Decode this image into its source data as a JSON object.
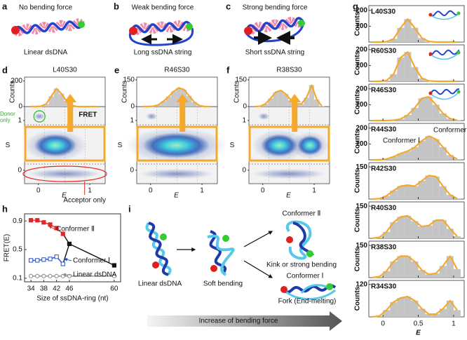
{
  "panel_a": {
    "letter": "a",
    "title": "No bending force",
    "caption": "Linear dsDNA"
  },
  "panel_b": {
    "letter": "b",
    "title": "Weak bending force",
    "caption": "Long ssDNA string"
  },
  "panel_c": {
    "letter": "c",
    "title": "Strong bending force",
    "caption": "Short ssDNA string"
  },
  "panel_d": {
    "letter": "d",
    "title": "L40S30",
    "ylabel": "Counts",
    "xlabel": "E",
    "slabel": "S",
    "fret_label": "FRET",
    "donor_label": "Donor only",
    "acceptor_label": "Acceptor only",
    "ylim": [
      0,
      230
    ],
    "yticks": [
      0,
      200
    ],
    "xlim": [
      -0.27,
      1.3
    ],
    "xticks": [
      0,
      1
    ],
    "slim": [
      -0.27,
      1.28
    ],
    "sticks": [
      0,
      1
    ],
    "bins": [
      -0.2,
      -0.1,
      0,
      0.1,
      0.2,
      0.3,
      0.4,
      0.5,
      0.6,
      0.7,
      0.8,
      0.9,
      1,
      1.1,
      1.2
    ],
    "counts": [
      0,
      0,
      3,
      20,
      80,
      140,
      100,
      40,
      8,
      0,
      0,
      0,
      0,
      0
    ],
    "color": "#f4a92d"
  },
  "panel_e": {
    "letter": "e",
    "title": "R46S30",
    "ylabel": "Counts",
    "xlabel": "E",
    "slabel": "S",
    "ylim": [
      0,
      165
    ],
    "yticks": [
      0,
      150
    ],
    "xlim": [
      -0.27,
      1.3
    ],
    "xticks": [
      0,
      1
    ],
    "slim": [
      -0.27,
      1.28
    ],
    "sticks": [
      0,
      1
    ],
    "bins": [
      -0.2,
      -0.1,
      0,
      0.1,
      0.2,
      0.3,
      0.4,
      0.5,
      0.6,
      0.7,
      0.8,
      0.9,
      1,
      1.1,
      1.2
    ],
    "counts": [
      0,
      0,
      2,
      10,
      30,
      55,
      85,
      105,
      95,
      60,
      25,
      6,
      0,
      0
    ],
    "color": "#f4a92d"
  },
  "panel_f": {
    "letter": "f",
    "title": "R38S30",
    "ylabel": "Counts",
    "xlabel": "E",
    "slabel": "S",
    "ylim": [
      0,
      165
    ],
    "yticks": [
      0,
      150
    ],
    "xlim": [
      -0.27,
      1.3
    ],
    "xticks": [
      0,
      1
    ],
    "slim": [
      -0.27,
      1.28
    ],
    "sticks": [
      0,
      1
    ],
    "bins": [
      -0.2,
      -0.1,
      0,
      0.1,
      0.2,
      0.3,
      0.4,
      0.5,
      0.6,
      0.7,
      0.8,
      0.9,
      1,
      1.1,
      1.2
    ],
    "counts": [
      0,
      2,
      15,
      45,
      80,
      90,
      70,
      35,
      15,
      15,
      50,
      120,
      40,
      2
    ],
    "color": "#f4a92d"
  },
  "panel_g": {
    "letter": "g",
    "ylabel": "Counts",
    "xlabel": "E",
    "xlim": [
      -0.2,
      1.15
    ],
    "xticks": [
      0,
      0.5,
      1
    ],
    "bins": [
      -0.2,
      -0.1,
      0,
      0.1,
      0.2,
      0.3,
      0.4,
      0.5,
      0.6,
      0.7,
      0.8,
      0.9,
      1,
      1.1
    ],
    "bar_color": "#c4c4c4",
    "curve_color": "#f4a92d",
    "conformer_labels": [
      {
        "text": "Conformer Ⅰ",
        "color": "#2050d0"
      },
      {
        "text": "Conformer Ⅱ",
        "color": "#e02828"
      }
    ],
    "plots": [
      {
        "title": "L40S30",
        "ylim": [
          0,
          230
        ],
        "yticks": [
          100,
          200
        ],
        "counts": [
          0,
          0,
          2,
          20,
          90,
          145,
          90,
          25,
          4,
          0,
          0,
          0,
          0
        ]
      },
      {
        "title": "R60S30",
        "ylim": [
          0,
          230
        ],
        "yticks": [
          100,
          200
        ],
        "counts": [
          0,
          0,
          5,
          45,
          150,
          185,
          90,
          20,
          3,
          0,
          0,
          0,
          0
        ]
      },
      {
        "title": "R46S30",
        "ylim": [
          0,
          230
        ],
        "yticks": [
          100,
          200
        ],
        "counts": [
          0,
          0,
          0,
          2,
          10,
          35,
          80,
          140,
          150,
          100,
          45,
          12,
          2
        ]
      },
      {
        "title": "R44S30",
        "ylim": [
          0,
          230
        ],
        "yticks": [
          100,
          200
        ],
        "counts": [
          0,
          0,
          5,
          20,
          40,
          55,
          80,
          120,
          150,
          130,
          80,
          30,
          5
        ]
      },
      {
        "title": "R42S30",
        "ylim": [
          0,
          170
        ],
        "yticks": [
          150
        ],
        "counts": [
          0,
          2,
          15,
          40,
          60,
          65,
          60,
          85,
          110,
          105,
          60,
          20,
          3
        ]
      },
      {
        "title": "R40S30",
        "ylim": [
          0,
          170
        ],
        "yticks": [
          150
        ],
        "counts": [
          0,
          5,
          30,
          75,
          100,
          105,
          80,
          55,
          60,
          85,
          85,
          45,
          10
        ]
      },
      {
        "title": "R38S30",
        "ylim": [
          0,
          170
        ],
        "yticks": [
          150
        ],
        "counts": [
          0,
          5,
          30,
          75,
          100,
          100,
          75,
          35,
          15,
          20,
          55,
          100,
          40
        ]
      },
      {
        "title": "R34S30",
        "ylim": [
          0,
          135
        ],
        "yticks": [
          120
        ],
        "counts": [
          0,
          3,
          25,
          55,
          70,
          75,
          60,
          30,
          10,
          10,
          30,
          60,
          25
        ]
      }
    ]
  },
  "panel_h": {
    "letter": "h",
    "type": "line",
    "ylabel": "FRET(E)",
    "xlabel": "Size of ssDNA-ring (nt)",
    "x": [
      34,
      36,
      38,
      40,
      42,
      44,
      46,
      60
    ],
    "xlim": [
      32,
      62
    ],
    "xticks": [
      34,
      38,
      42,
      46,
      60
    ],
    "ylim": [
      0.05,
      1.0
    ],
    "yticks": [
      0.1,
      0.5,
      0.9
    ],
    "series": [
      {
        "name": "Conformer Ⅱ",
        "color": "#e02828",
        "marker": "square",
        "values": [
          0.91,
          0.91,
          0.88,
          0.85,
          0.8,
          0.72,
          null,
          null
        ]
      },
      {
        "name": "Conformer Ⅰ",
        "color": "#2050d0",
        "marker": "square-open",
        "values": [
          0.35,
          0.35,
          0.36,
          0.37,
          0.4,
          0.3,
          null,
          null
        ]
      },
      {
        "name": "Linear dsDNA",
        "color": "#888888",
        "marker": "circle-open",
        "values": [
          0.13,
          0.13,
          0.13,
          0.13,
          0.13,
          0.13,
          0.13,
          0.13
        ]
      },
      {
        "color": "#111111",
        "marker": "square",
        "values": [
          null,
          null,
          null,
          null,
          null,
          null,
          0.58,
          0.28
        ]
      }
    ]
  },
  "panel_i": {
    "letter": "i",
    "linear": "Linear dsDNA",
    "soft": "Soft bending",
    "conf2": "Conformer Ⅱ",
    "conf2_desc": "Kink or strong bending",
    "conf1": "Conformer Ⅰ",
    "conf1_desc": "Fork (End-melting)",
    "arrow_label": "Increase of bending force"
  }
}
